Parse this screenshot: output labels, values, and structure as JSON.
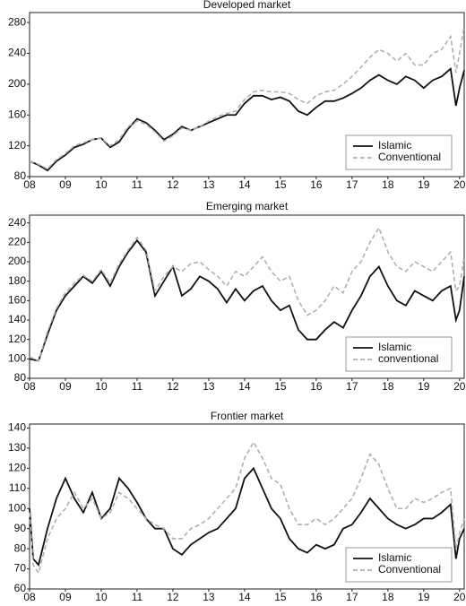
{
  "chart_data": [
    {
      "type": "line",
      "title": "Developed market",
      "x": [
        2008,
        2008.25,
        2008.5,
        2008.75,
        2009,
        2009.25,
        2009.5,
        2009.75,
        2010,
        2010.25,
        2010.5,
        2010.75,
        2011,
        2011.25,
        2011.5,
        2011.75,
        2012,
        2012.25,
        2012.5,
        2012.75,
        2013,
        2013.25,
        2013.5,
        2013.75,
        2014,
        2014.25,
        2014.5,
        2014.75,
        2015,
        2015.25,
        2015.5,
        2015.75,
        2016,
        2016.25,
        2016.5,
        2016.75,
        2017,
        2017.25,
        2017.5,
        2017.75,
        2018,
        2018.25,
        2018.5,
        2018.75,
        2019,
        2019.25,
        2019.5,
        2019.75,
        2019.9,
        2020,
        2020.13
      ],
      "series": [
        {
          "name": "Islamic",
          "color": "#111111",
          "dashed": false,
          "values": [
            100,
            95,
            88,
            100,
            108,
            118,
            122,
            128,
            130,
            118,
            125,
            142,
            155,
            150,
            140,
            128,
            135,
            145,
            140,
            145,
            150,
            155,
            160,
            160,
            175,
            185,
            185,
            180,
            183,
            178,
            165,
            160,
            170,
            178,
            178,
            182,
            188,
            195,
            205,
            212,
            205,
            200,
            210,
            205,
            195,
            205,
            210,
            220,
            172,
            195,
            218
          ]
        },
        {
          "name": "Conventional",
          "color": "#b0b0b0",
          "dashed": true,
          "values": [
            100,
            96,
            90,
            102,
            110,
            120,
            124,
            128,
            130,
            120,
            128,
            145,
            152,
            148,
            138,
            126,
            133,
            143,
            140,
            145,
            152,
            158,
            162,
            165,
            180,
            190,
            192,
            190,
            190,
            188,
            180,
            175,
            185,
            190,
            192,
            200,
            210,
            222,
            235,
            245,
            240,
            230,
            240,
            225,
            225,
            240,
            245,
            262,
            215,
            240,
            275
          ]
        }
      ],
      "xlim": [
        2008,
        2020.13
      ],
      "xticks": [
        {
          "value": 2008,
          "label": "08"
        },
        {
          "value": 2009,
          "label": "09"
        },
        {
          "value": 2010,
          "label": "10"
        },
        {
          "value": 2011,
          "label": "11"
        },
        {
          "value": 2012,
          "label": "12"
        },
        {
          "value": 2013,
          "label": "13"
        },
        {
          "value": 2014,
          "label": "14"
        },
        {
          "value": 2015,
          "label": "15"
        },
        {
          "value": 2016,
          "label": "16"
        },
        {
          "value": 2017,
          "label": "17"
        },
        {
          "value": 2018,
          "label": "18"
        },
        {
          "value": 2019,
          "label": "19"
        },
        {
          "value": 2020,
          "label": "20"
        }
      ],
      "ylim": [
        80,
        293
      ],
      "yticks": [
        80,
        120,
        160,
        200,
        240,
        280
      ],
      "legend": "lower right"
    },
    {
      "type": "line",
      "title": "Emerging market",
      "x": [
        2008,
        2008.25,
        2008.5,
        2008.75,
        2009,
        2009.25,
        2009.5,
        2009.75,
        2010,
        2010.25,
        2010.5,
        2010.75,
        2011,
        2011.25,
        2011.5,
        2011.75,
        2012,
        2012.25,
        2012.5,
        2012.75,
        2013,
        2013.25,
        2013.5,
        2013.75,
        2014,
        2014.25,
        2014.5,
        2014.75,
        2015,
        2015.25,
        2015.5,
        2015.75,
        2016,
        2016.25,
        2016.5,
        2016.75,
        2017,
        2017.25,
        2017.5,
        2017.75,
        2018,
        2018.25,
        2018.5,
        2018.75,
        2019,
        2019.25,
        2019.5,
        2019.75,
        2019.9,
        2020,
        2020.13
      ],
      "series": [
        {
          "name": "Islamic",
          "color": "#111111",
          "dashed": false,
          "values": [
            100,
            98,
            125,
            150,
            165,
            175,
            185,
            178,
            190,
            175,
            195,
            210,
            222,
            210,
            165,
            180,
            195,
            165,
            172,
            185,
            180,
            172,
            158,
            172,
            160,
            170,
            175,
            160,
            150,
            155,
            130,
            120,
            120,
            130,
            138,
            132,
            150,
            165,
            185,
            195,
            175,
            160,
            155,
            170,
            165,
            160,
            170,
            175,
            140,
            150,
            185
          ]
        },
        {
          "name": "conventional",
          "color": "#b0b0b0",
          "dashed": true,
          "values": [
            102,
            98,
            128,
            152,
            168,
            178,
            186,
            180,
            192,
            178,
            198,
            212,
            225,
            212,
            170,
            185,
            195,
            190,
            198,
            200,
            192,
            185,
            175,
            190,
            185,
            195,
            205,
            190,
            180,
            185,
            160,
            145,
            150,
            160,
            175,
            168,
            190,
            200,
            220,
            235,
            210,
            195,
            190,
            200,
            195,
            190,
            200,
            210,
            170,
            175,
            205
          ]
        }
      ],
      "xlim": [
        2008,
        2020.13
      ],
      "xticks": [
        {
          "value": 2008,
          "label": "08"
        },
        {
          "value": 2009,
          "label": "09"
        },
        {
          "value": 2010,
          "label": "10"
        },
        {
          "value": 2011,
          "label": "11"
        },
        {
          "value": 2012,
          "label": "12"
        },
        {
          "value": 2013,
          "label": "13"
        },
        {
          "value": 2014,
          "label": "14"
        },
        {
          "value": 2015,
          "label": "15"
        },
        {
          "value": 2016,
          "label": "16"
        },
        {
          "value": 2017,
          "label": "17"
        },
        {
          "value": 2018,
          "label": "18"
        },
        {
          "value": 2019,
          "label": "19"
        },
        {
          "value": 2020,
          "label": "20"
        }
      ],
      "ylim": [
        80,
        248
      ],
      "yticks": [
        80,
        100,
        120,
        140,
        160,
        180,
        200,
        220,
        240
      ],
      "legend": "lower right"
    },
    {
      "type": "line",
      "title": "Frontier market",
      "x": [
        2008,
        2008.1,
        2008.25,
        2008.5,
        2008.75,
        2009,
        2009.25,
        2009.5,
        2009.75,
        2010,
        2010.25,
        2010.5,
        2010.75,
        2011,
        2011.25,
        2011.5,
        2011.75,
        2012,
        2012.25,
        2012.5,
        2012.75,
        2013,
        2013.25,
        2013.5,
        2013.75,
        2014,
        2014.25,
        2014.5,
        2014.75,
        2015,
        2015.25,
        2015.5,
        2015.75,
        2016,
        2016.25,
        2016.5,
        2016.75,
        2017,
        2017.25,
        2017.5,
        2017.75,
        2018,
        2018.25,
        2018.5,
        2018.75,
        2019,
        2019.25,
        2019.5,
        2019.75,
        2019.9,
        2020,
        2020.13
      ],
      "series": [
        {
          "name": "Islamic",
          "color": "#111111",
          "dashed": false,
          "values": [
            100,
            75,
            72,
            90,
            105,
            115,
            105,
            98,
            108,
            95,
            100,
            115,
            110,
            103,
            95,
            90,
            90,
            80,
            77,
            82,
            85,
            88,
            90,
            95,
            100,
            115,
            120,
            110,
            100,
            95,
            85,
            80,
            78,
            82,
            80,
            82,
            90,
            92,
            98,
            105,
            100,
            95,
            92,
            90,
            92,
            95,
            95,
            98,
            102,
            75,
            85,
            90
          ]
        },
        {
          "name": "Conventional",
          "color": "#b0b0b0",
          "dashed": true,
          "values": [
            98,
            72,
            68,
            85,
            95,
            100,
            108,
            100,
            105,
            95,
            98,
            108,
            105,
            100,
            95,
            92,
            90,
            85,
            85,
            90,
            92,
            95,
            100,
            105,
            110,
            125,
            133,
            125,
            115,
            112,
            100,
            92,
            92,
            95,
            92,
            95,
            100,
            105,
            115,
            127,
            122,
            110,
            100,
            100,
            105,
            103,
            105,
            108,
            110,
            80,
            88,
            95
          ]
        }
      ],
      "xlim": [
        2008,
        2020.13
      ],
      "xticks": [
        {
          "value": 2008,
          "label": "08"
        },
        {
          "value": 2009,
          "label": "09"
        },
        {
          "value": 2010,
          "label": "10"
        },
        {
          "value": 2011,
          "label": "11"
        },
        {
          "value": 2012,
          "label": "12"
        },
        {
          "value": 2013,
          "label": "13"
        },
        {
          "value": 2014,
          "label": "14"
        },
        {
          "value": 2015,
          "label": "15"
        },
        {
          "value": 2016,
          "label": "16"
        },
        {
          "value": 2017,
          "label": "17"
        },
        {
          "value": 2018,
          "label": "18"
        },
        {
          "value": 2019,
          "label": "19"
        },
        {
          "value": 2020,
          "label": "20"
        }
      ],
      "ylim": [
        60,
        142
      ],
      "yticks": [
        60,
        70,
        80,
        90,
        100,
        110,
        120,
        130,
        140
      ],
      "legend": "lower right"
    }
  ]
}
